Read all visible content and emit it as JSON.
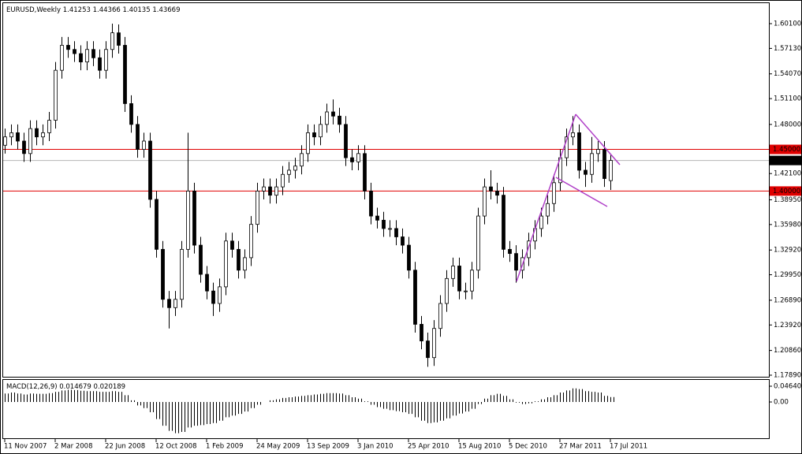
{
  "chart_data": [
    {
      "type": "candlestick",
      "title": "EURUSD,Weekly",
      "categories": [
        "11 Nov 2007",
        null,
        null,
        null,
        null,
        null,
        null,
        null,
        "2 Mar 2008",
        null,
        null,
        null,
        null,
        null,
        null,
        null,
        "22 Jun 2008",
        null,
        null,
        null,
        null,
        null,
        null,
        null,
        "12 Oct 2008",
        null,
        null,
        null,
        null,
        null,
        null,
        null,
        "1 Feb 2009",
        null,
        null,
        null,
        null,
        null,
        null,
        null,
        "24 May 2009",
        null,
        null,
        null,
        null,
        null,
        null,
        null,
        "13 Sep 2009",
        null,
        null,
        null,
        null,
        null,
        null,
        null,
        "3 Jan 2010",
        null,
        null,
        null,
        null,
        null,
        null,
        null,
        "25 Apr 2010",
        null,
        null,
        null,
        null,
        null,
        null,
        null,
        "15 Aug 2010",
        null,
        null,
        null,
        null,
        null,
        null,
        null,
        "5 Dec 2010",
        null,
        null,
        null,
        null,
        null,
        null,
        null,
        "27 Mar 2011",
        null,
        null,
        null,
        null,
        null,
        null,
        null,
        "17 Jul 2011"
      ],
      "open": [
        1.455,
        1.465,
        1.47,
        1.46,
        1.445,
        1.475,
        1.465,
        1.47,
        1.485,
        1.545,
        1.575,
        1.57,
        1.565,
        1.555,
        1.57,
        1.56,
        1.545,
        1.57,
        1.59,
        1.575,
        1.505,
        1.48,
        1.45,
        1.46,
        1.39,
        1.33,
        1.27,
        1.26,
        1.27,
        1.33,
        1.4,
        1.335,
        1.3,
        1.28,
        1.265,
        1.285,
        1.34,
        1.33,
        1.305,
        1.32,
        1.36,
        1.4,
        1.405,
        1.395,
        1.405,
        1.42,
        1.425,
        1.43,
        1.445,
        1.47,
        1.465,
        1.48,
        1.495,
        1.49,
        1.48,
        1.44,
        1.435,
        1.445,
        1.4,
        1.37,
        1.365,
        1.355,
        1.355,
        1.345,
        1.335,
        1.305,
        1.24,
        1.22,
        1.2,
        1.235,
        1.265,
        1.295,
        1.31,
        1.28,
        1.28,
        1.305,
        1.37,
        1.405,
        1.4,
        1.395,
        1.33,
        1.325,
        1.305,
        1.32,
        1.34,
        1.355,
        1.37,
        1.385,
        1.41,
        1.44,
        1.465,
        1.47,
        1.425,
        1.42,
        1.445,
        1.45,
        1.41253
      ],
      "high": [
        1.475,
        1.48,
        1.48,
        1.47,
        1.485,
        1.485,
        1.48,
        1.495,
        1.555,
        1.585,
        1.585,
        1.58,
        1.575,
        1.58,
        1.58,
        1.57,
        1.58,
        1.601,
        1.6,
        1.585,
        1.515,
        1.49,
        1.47,
        1.47,
        1.4,
        1.34,
        1.28,
        1.28,
        1.34,
        1.47,
        1.41,
        1.345,
        1.31,
        1.29,
        1.295,
        1.35,
        1.35,
        1.34,
        1.33,
        1.37,
        1.41,
        1.415,
        1.415,
        1.415,
        1.43,
        1.435,
        1.44,
        1.455,
        1.48,
        1.48,
        1.49,
        1.505,
        1.51,
        1.5,
        1.49,
        1.45,
        1.455,
        1.455,
        1.41,
        1.38,
        1.375,
        1.365,
        1.365,
        1.355,
        1.345,
        1.315,
        1.25,
        1.23,
        1.245,
        1.275,
        1.305,
        1.32,
        1.32,
        1.29,
        1.315,
        1.38,
        1.415,
        1.425,
        1.41,
        1.405,
        1.34,
        1.335,
        1.33,
        1.35,
        1.365,
        1.38,
        1.395,
        1.42,
        1.45,
        1.475,
        1.49,
        1.48,
        1.435,
        1.465,
        1.46,
        1.46,
        1.44366
      ],
      "low": [
        1.445,
        1.455,
        1.45,
        1.435,
        1.435,
        1.455,
        1.455,
        1.46,
        1.475,
        1.535,
        1.56,
        1.555,
        1.545,
        1.545,
        1.55,
        1.535,
        1.535,
        1.56,
        1.565,
        1.495,
        1.47,
        1.44,
        1.44,
        1.38,
        1.32,
        1.26,
        1.235,
        1.25,
        1.26,
        1.32,
        1.325,
        1.29,
        1.27,
        1.25,
        1.255,
        1.275,
        1.32,
        1.295,
        1.295,
        1.31,
        1.35,
        1.39,
        1.385,
        1.385,
        1.395,
        1.41,
        1.415,
        1.42,
        1.435,
        1.455,
        1.455,
        1.47,
        1.48,
        1.47,
        1.43,
        1.425,
        1.425,
        1.39,
        1.36,
        1.355,
        1.345,
        1.345,
        1.335,
        1.325,
        1.295,
        1.23,
        1.21,
        1.189,
        1.19,
        1.225,
        1.255,
        1.285,
        1.27,
        1.27,
        1.27,
        1.295,
        1.36,
        1.39,
        1.385,
        1.32,
        1.315,
        1.29,
        1.295,
        1.31,
        1.33,
        1.345,
        1.36,
        1.375,
        1.4,
        1.43,
        1.455,
        1.415,
        1.405,
        1.41,
        1.435,
        1.405,
        1.40135
      ],
      "close": [
        1.465,
        1.47,
        1.46,
        1.445,
        1.475,
        1.465,
        1.47,
        1.485,
        1.545,
        1.575,
        1.57,
        1.565,
        1.555,
        1.57,
        1.56,
        1.545,
        1.57,
        1.59,
        1.575,
        1.505,
        1.48,
        1.45,
        1.46,
        1.39,
        1.33,
        1.27,
        1.26,
        1.27,
        1.33,
        1.4,
        1.335,
        1.3,
        1.28,
        1.265,
        1.285,
        1.34,
        1.33,
        1.305,
        1.32,
        1.36,
        1.4,
        1.405,
        1.395,
        1.405,
        1.42,
        1.425,
        1.43,
        1.445,
        1.47,
        1.465,
        1.48,
        1.495,
        1.49,
        1.48,
        1.44,
        1.435,
        1.445,
        1.4,
        1.37,
        1.365,
        1.355,
        1.355,
        1.345,
        1.335,
        1.305,
        1.24,
        1.22,
        1.2,
        1.235,
        1.265,
        1.295,
        1.31,
        1.28,
        1.28,
        1.305,
        1.37,
        1.405,
        1.4,
        1.395,
        1.33,
        1.325,
        1.305,
        1.32,
        1.34,
        1.355,
        1.37,
        1.385,
        1.41,
        1.44,
        1.465,
        1.47,
        1.425,
        1.42,
        1.445,
        1.45,
        1.415,
        1.43669
      ],
      "ylim": [
        1.17701,
        1.62561
      ],
      "yticks": [
        {
          "value": 1.601,
          "label": "1.60100"
        },
        {
          "value": 1.5713,
          "label": "1.57130"
        },
        {
          "value": 1.5407,
          "label": "1.54070"
        },
        {
          "value": 1.511,
          "label": "1.51100"
        },
        {
          "value": 1.48,
          "label": "1.48000"
        },
        {
          "value": 1.421,
          "label": "1.42100"
        },
        {
          "value": 1.3895,
          "label": "1.38950"
        },
        {
          "value": 1.3598,
          "label": "1.35980"
        },
        {
          "value": 1.3292,
          "label": "1.32920"
        },
        {
          "value": 1.2995,
          "label": "1.29950"
        },
        {
          "value": 1.2689,
          "label": "1.26890"
        },
        {
          "value": 1.2392,
          "label": "1.23920"
        },
        {
          "value": 1.2086,
          "label": "1.20860"
        },
        {
          "value": 1.1789,
          "label": "1.17890"
        }
      ],
      "levels": [
        {
          "value": 1.45,
          "label": "1.45000"
        },
        {
          "value": 1.4,
          "label": "1.40000"
        }
      ],
      "level_color": "#e00000",
      "current_price_color": "#b4b4b4"
    },
    {
      "type": "bar",
      "title": "MACD(12,26,9)",
      "main_value": 0.014679,
      "signal_value": 0.020189,
      "color": "#000000",
      "values": [
        0.025,
        0.028,
        0.025,
        0.022,
        0.025,
        0.024,
        0.024,
        0.026,
        0.03,
        0.034,
        0.036,
        0.035,
        0.033,
        0.032,
        0.032,
        0.03,
        0.03,
        0.032,
        0.03,
        0.02,
        0.005,
        -0.01,
        -0.018,
        -0.03,
        -0.05,
        -0.07,
        -0.085,
        -0.092,
        -0.088,
        -0.075,
        -0.07,
        -0.068,
        -0.065,
        -0.062,
        -0.055,
        -0.045,
        -0.04,
        -0.035,
        -0.028,
        -0.018,
        -0.008,
        0.0,
        0.005,
        0.008,
        0.012,
        0.014,
        0.016,
        0.018,
        0.02,
        0.022,
        0.024,
        0.026,
        0.026,
        0.025,
        0.02,
        0.014,
        0.01,
        0.002,
        -0.008,
        -0.015,
        -0.02,
        -0.024,
        -0.027,
        -0.03,
        -0.035,
        -0.045,
        -0.055,
        -0.062,
        -0.06,
        -0.055,
        -0.048,
        -0.04,
        -0.034,
        -0.028,
        -0.02,
        -0.006,
        0.01,
        0.02,
        0.024,
        0.018,
        0.008,
        -0.002,
        -0.006,
        -0.004,
        0.002,
        0.008,
        0.014,
        0.02,
        0.028,
        0.034,
        0.04,
        0.038,
        0.032,
        0.03,
        0.028,
        0.018,
        0.014679
      ],
      "ylim": [
        -0.1067,
        0.065
      ],
      "yticks": [
        {
          "value": 0.046409,
          "label": "0.046409"
        },
        {
          "value": 0,
          "label": "0.00"
        }
      ]
    }
  ]
}
